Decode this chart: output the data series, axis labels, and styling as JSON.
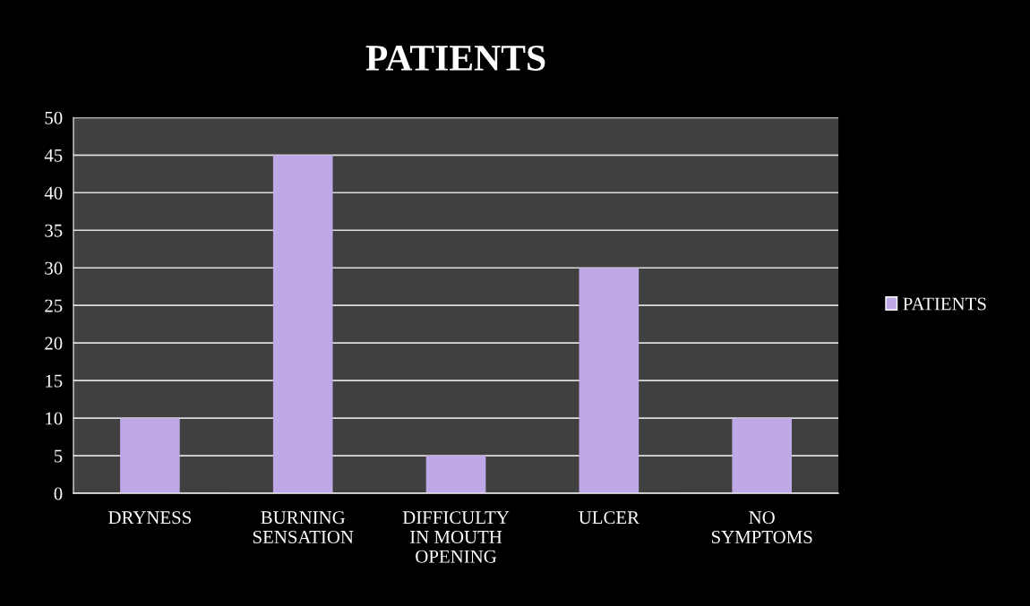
{
  "chart_data": {
    "type": "bar",
    "title": "PATIENTS",
    "categories": [
      "DRYNESS",
      "BURNING\nSENSATION",
      "DIFFICULTY\nIN MOUTH\nOPENING",
      "ULCER",
      "NO\nSYMPTOMS"
    ],
    "series": [
      {
        "name": "PATIENTS",
        "color": "#bfa8e8",
        "values": [
          10,
          45,
          5,
          30,
          10
        ]
      }
    ],
    "ylim": [
      0,
      50
    ],
    "yticks": [
      0,
      5,
      10,
      15,
      20,
      25,
      30,
      35,
      40,
      45,
      50
    ],
    "grid": "y",
    "legend": "right"
  }
}
